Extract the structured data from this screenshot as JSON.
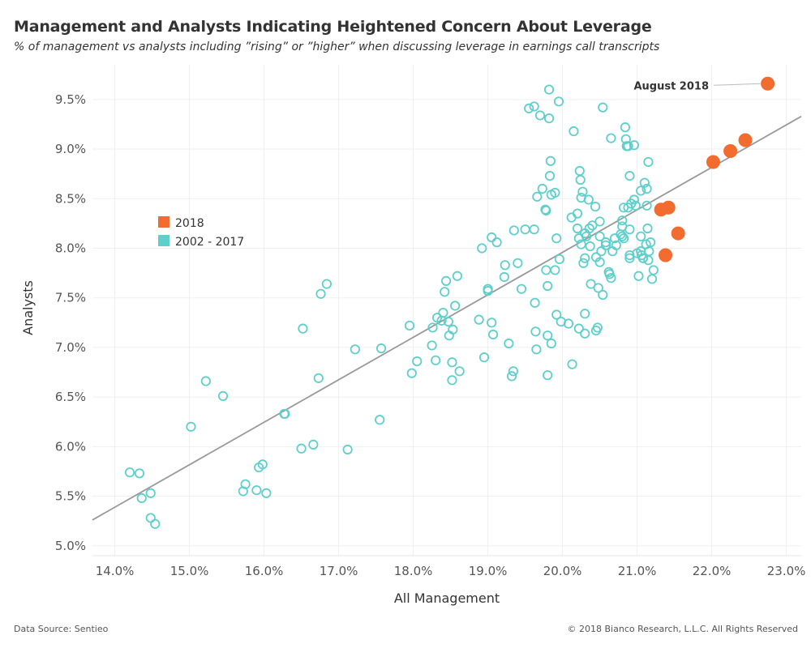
{
  "chart_data": {
    "type": "scatter",
    "title": "Management and Analysts Indicating Heightened Concern About Leverage",
    "subtitle": "% of management vs analysts including ”rising” or ”higher” when discussing leverage in earnings call transcripts",
    "xlabel": "All Management",
    "ylabel": "Analysts",
    "xlim": [
      13.7,
      23.2
    ],
    "ylim": [
      4.9,
      9.85
    ],
    "x_ticks": [
      14,
      15,
      16,
      17,
      18,
      19,
      20,
      21,
      22,
      23
    ],
    "x_tick_labels": [
      "14.0%",
      "15.0%",
      "16.0%",
      "17.0%",
      "18.0%",
      "19.0%",
      "20.0%",
      "21.0%",
      "22.0%",
      "23.0%"
    ],
    "y_ticks": [
      5.0,
      5.5,
      6.0,
      6.5,
      7.0,
      7.5,
      8.0,
      8.5,
      9.0,
      9.5
    ],
    "y_tick_labels": [
      "5.0%",
      "5.5%",
      "6.0%",
      "6.5%",
      "7.0%",
      "7.5%",
      "8.0%",
      "8.5%",
      "9.0%",
      "9.5%"
    ],
    "grid": true,
    "legend_position": "left",
    "trendline": {
      "x": [
        13.7,
        23.2
      ],
      "y": [
        5.26,
        9.33
      ]
    },
    "annotation": {
      "text": "August 2018",
      "x": 22.75,
      "y": 9.66
    },
    "series": [
      {
        "name": "2018",
        "color": "#f26b2f",
        "marker": "filled",
        "points": [
          [
            22.75,
            9.66
          ],
          [
            22.45,
            9.09
          ],
          [
            22.25,
            8.98
          ],
          [
            22.02,
            8.87
          ],
          [
            21.42,
            8.41
          ],
          [
            21.32,
            8.39
          ],
          [
            21.55,
            8.15
          ],
          [
            21.38,
            7.93
          ]
        ]
      },
      {
        "name": "2002 - 2017",
        "color": "#5ecfcb",
        "marker": "hollow",
        "points": [
          [
            14.2,
            5.74
          ],
          [
            14.33,
            5.73
          ],
          [
            14.36,
            5.48
          ],
          [
            14.48,
            5.53
          ],
          [
            14.48,
            5.28
          ],
          [
            14.54,
            5.22
          ],
          [
            15.02,
            6.2
          ],
          [
            15.22,
            6.66
          ],
          [
            15.45,
            6.51
          ],
          [
            15.72,
            5.55
          ],
          [
            15.75,
            5.62
          ],
          [
            15.9,
            5.56
          ],
          [
            15.93,
            5.79
          ],
          [
            15.98,
            5.82
          ],
          [
            16.03,
            5.53
          ],
          [
            16.27,
            6.33
          ],
          [
            16.28,
            6.33
          ],
          [
            16.52,
            7.19
          ],
          [
            16.5,
            5.98
          ],
          [
            16.66,
            6.02
          ],
          [
            16.73,
            6.69
          ],
          [
            16.76,
            7.54
          ],
          [
            16.84,
            7.64
          ],
          [
            17.12,
            5.97
          ],
          [
            17.22,
            6.98
          ],
          [
            17.55,
            6.27
          ],
          [
            17.57,
            6.99
          ],
          [
            17.95,
            7.22
          ],
          [
            17.98,
            6.74
          ],
          [
            18.05,
            6.86
          ],
          [
            18.25,
            7.02
          ],
          [
            18.26,
            7.2
          ],
          [
            18.3,
            6.87
          ],
          [
            18.32,
            7.3
          ],
          [
            18.38,
            7.27
          ],
          [
            18.4,
            7.35
          ],
          [
            18.42,
            7.56
          ],
          [
            18.44,
            7.67
          ],
          [
            18.47,
            7.26
          ],
          [
            18.48,
            7.12
          ],
          [
            18.52,
            6.85
          ],
          [
            18.52,
            6.67
          ],
          [
            18.53,
            7.18
          ],
          [
            18.56,
            7.42
          ],
          [
            18.59,
            7.72
          ],
          [
            18.62,
            6.76
          ],
          [
            18.88,
            7.28
          ],
          [
            18.92,
            8.0
          ],
          [
            18.95,
            6.9
          ],
          [
            19.0,
            7.59
          ],
          [
            19.0,
            7.57
          ],
          [
            19.05,
            8.11
          ],
          [
            19.05,
            7.25
          ],
          [
            19.07,
            7.13
          ],
          [
            19.12,
            8.06
          ],
          [
            19.22,
            7.71
          ],
          [
            19.23,
            7.83
          ],
          [
            19.28,
            7.04
          ],
          [
            19.32,
            6.71
          ],
          [
            19.34,
            6.76
          ],
          [
            19.35,
            8.18
          ],
          [
            19.4,
            7.85
          ],
          [
            19.45,
            7.59
          ],
          [
            19.5,
            8.19
          ],
          [
            19.55,
            9.41
          ],
          [
            19.62,
            9.43
          ],
          [
            19.62,
            8.19
          ],
          [
            19.63,
            7.45
          ],
          [
            19.64,
            7.16
          ],
          [
            19.65,
            6.98
          ],
          [
            19.66,
            8.52
          ],
          [
            19.7,
            9.34
          ],
          [
            19.73,
            8.6
          ],
          [
            19.77,
            8.39
          ],
          [
            19.78,
            8.38
          ],
          [
            19.78,
            7.78
          ],
          [
            19.8,
            7.62
          ],
          [
            19.8,
            7.12
          ],
          [
            19.8,
            6.72
          ],
          [
            19.82,
            9.6
          ],
          [
            19.82,
            9.31
          ],
          [
            19.83,
            8.73
          ],
          [
            19.84,
            8.88
          ],
          [
            19.85,
            8.54
          ],
          [
            19.85,
            7.04
          ],
          [
            19.9,
            8.56
          ],
          [
            19.9,
            7.78
          ],
          [
            19.92,
            8.1
          ],
          [
            19.92,
            7.33
          ],
          [
            19.95,
            9.48
          ],
          [
            19.96,
            7.89
          ],
          [
            19.98,
            7.26
          ],
          [
            20.08,
            7.24
          ],
          [
            20.12,
            8.31
          ],
          [
            20.13,
            6.83
          ],
          [
            20.15,
            9.18
          ],
          [
            20.2,
            8.35
          ],
          [
            20.2,
            8.2
          ],
          [
            20.22,
            8.1
          ],
          [
            20.22,
            7.19
          ],
          [
            20.23,
            8.78
          ],
          [
            20.24,
            8.69
          ],
          [
            20.25,
            8.51
          ],
          [
            20.25,
            8.04
          ],
          [
            20.27,
            8.57
          ],
          [
            20.28,
            7.85
          ],
          [
            20.3,
            7.9
          ],
          [
            20.3,
            7.34
          ],
          [
            20.3,
            7.14
          ],
          [
            20.3,
            8.15
          ],
          [
            20.32,
            8.12
          ],
          [
            20.35,
            8.49
          ],
          [
            20.36,
            8.2
          ],
          [
            20.37,
            8.02
          ],
          [
            20.38,
            7.64
          ],
          [
            20.4,
            8.23
          ],
          [
            20.44,
            8.42
          ],
          [
            20.45,
            7.91
          ],
          [
            20.45,
            7.17
          ],
          [
            20.47,
            7.2
          ],
          [
            20.48,
            7.6
          ],
          [
            20.5,
            8.27
          ],
          [
            20.5,
            8.12
          ],
          [
            20.5,
            7.86
          ],
          [
            20.52,
            7.97
          ],
          [
            20.54,
            9.42
          ],
          [
            20.54,
            7.53
          ],
          [
            20.58,
            8.06
          ],
          [
            20.58,
            8.03
          ],
          [
            20.62,
            7.76
          ],
          [
            20.63,
            7.74
          ],
          [
            20.65,
            9.11
          ],
          [
            20.65,
            7.7
          ],
          [
            20.67,
            7.97
          ],
          [
            20.7,
            8.1
          ],
          [
            20.72,
            8.03
          ],
          [
            20.78,
            8.14
          ],
          [
            20.8,
            8.28
          ],
          [
            20.8,
            8.22
          ],
          [
            20.8,
            8.12
          ],
          [
            20.82,
            8.41
          ],
          [
            20.82,
            8.1
          ],
          [
            20.84,
            9.22
          ],
          [
            20.85,
            9.1
          ],
          [
            20.86,
            9.03
          ],
          [
            20.88,
            9.03
          ],
          [
            20.88,
            8.41
          ],
          [
            20.9,
            8.73
          ],
          [
            20.9,
            8.19
          ],
          [
            20.9,
            7.93
          ],
          [
            20.9,
            7.9
          ],
          [
            20.92,
            8.45
          ],
          [
            20.96,
            9.04
          ],
          [
            20.96,
            8.49
          ],
          [
            20.98,
            8.43
          ],
          [
            21.0,
            7.95
          ],
          [
            21.02,
            7.72
          ],
          [
            21.05,
            8.58
          ],
          [
            21.05,
            8.12
          ],
          [
            21.05,
            7.97
          ],
          [
            21.06,
            7.93
          ],
          [
            21.08,
            7.9
          ],
          [
            21.08,
            7.9
          ],
          [
            21.1,
            8.66
          ],
          [
            21.12,
            8.04
          ],
          [
            21.13,
            8.6
          ],
          [
            21.13,
            8.43
          ],
          [
            21.14,
            8.2
          ],
          [
            21.15,
            8.87
          ],
          [
            21.15,
            7.88
          ],
          [
            21.16,
            7.97
          ],
          [
            21.18,
            8.06
          ],
          [
            21.2,
            7.69
          ],
          [
            21.22,
            7.78
          ]
        ]
      }
    ]
  },
  "footer": {
    "source": "Data Source: Sentieo",
    "copyright": "© 2018 Bianco Research, L.L.C. All Rights Reserved"
  }
}
